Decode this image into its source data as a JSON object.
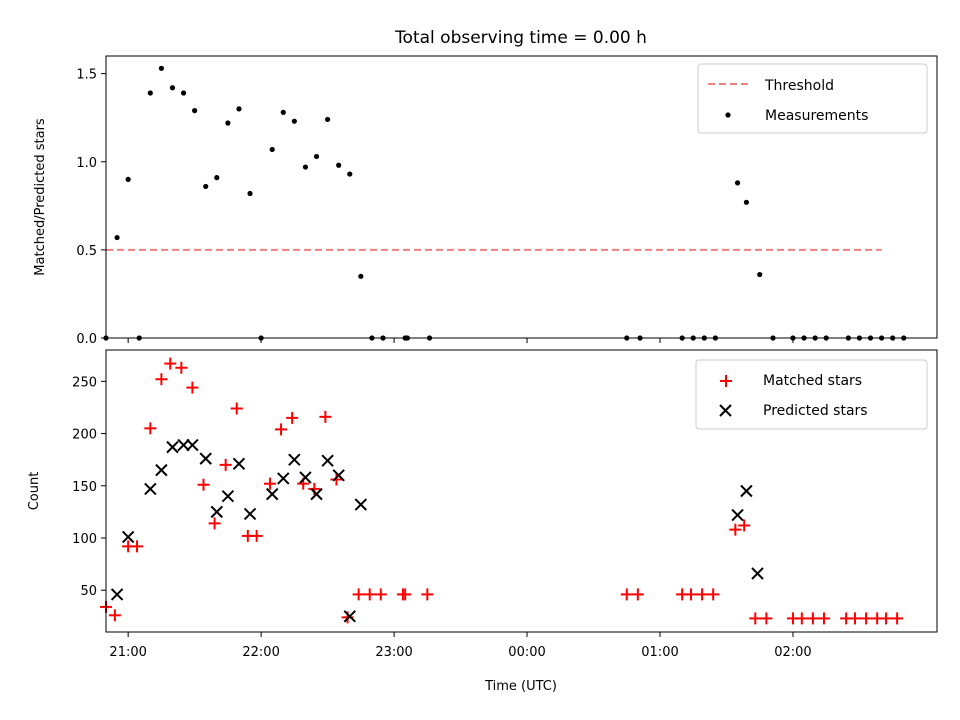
{
  "figure": {
    "title": "Total observing time = 0.00 h",
    "xlabel": "Time (UTC)"
  },
  "chart_data": [
    {
      "type": "scatter",
      "ylabel": "Matched/Predicted stars",
      "xlim": [
        "20:50",
        "03:05"
      ],
      "ylim": [
        0,
        1.6
      ],
      "yticks": [
        "0.0",
        "0.5",
        "1.0",
        "1.5"
      ],
      "legend_position": "top-right",
      "threshold": {
        "name": "Threshold",
        "value": 0.5,
        "x_start": "20:50",
        "x_end": "02:40",
        "color": "#f08080"
      },
      "series": [
        {
          "name": "Measurements",
          "color": "#000000",
          "points": [
            [
              "20:50",
              0.0
            ],
            [
              "20:55",
              0.57
            ],
            [
              "21:00",
              0.9
            ],
            [
              "21:05",
              0.0
            ],
            [
              "21:10",
              1.39
            ],
            [
              "21:15",
              1.53
            ],
            [
              "21:20",
              1.42
            ],
            [
              "21:25",
              1.39
            ],
            [
              "21:30",
              1.29
            ],
            [
              "21:35",
              0.86
            ],
            [
              "21:40",
              0.91
            ],
            [
              "21:45",
              1.22
            ],
            [
              "21:50",
              1.3
            ],
            [
              "21:55",
              0.82
            ],
            [
              "22:00",
              0.0
            ],
            [
              "22:05",
              1.07
            ],
            [
              "22:10",
              1.28
            ],
            [
              "22:15",
              1.23
            ],
            [
              "22:20",
              0.97
            ],
            [
              "22:25",
              1.03
            ],
            [
              "22:30",
              1.24
            ],
            [
              "22:35",
              0.98
            ],
            [
              "22:40",
              0.93
            ],
            [
              "22:45",
              0.35
            ],
            [
              "22:50",
              0.0
            ],
            [
              "22:55",
              0.0
            ],
            [
              "23:05",
              0.0
            ],
            [
              "23:06",
              0.0
            ],
            [
              "23:16",
              0.0
            ],
            [
              "00:45",
              0.0
            ],
            [
              "00:51",
              0.0
            ],
            [
              "01:10",
              0.0
            ],
            [
              "01:15",
              0.0
            ],
            [
              "01:20",
              0.0
            ],
            [
              "01:25",
              0.0
            ],
            [
              "01:35",
              0.88
            ],
            [
              "01:39",
              0.77
            ],
            [
              "01:45",
              0.36
            ],
            [
              "01:51",
              0.0
            ],
            [
              "02:00",
              0.0
            ],
            [
              "02:05",
              0.0
            ],
            [
              "02:10",
              0.0
            ],
            [
              "02:15",
              0.0
            ],
            [
              "02:25",
              0.0
            ],
            [
              "02:30",
              0.0
            ],
            [
              "02:35",
              0.0
            ],
            [
              "02:40",
              0.0
            ],
            [
              "02:45",
              0.0
            ],
            [
              "02:50",
              0.0
            ]
          ]
        }
      ]
    },
    {
      "type": "scatter",
      "ylabel": "Count",
      "xlim": [
        "20:50",
        "03:05"
      ],
      "ylim": [
        10,
        280
      ],
      "yticks": [
        "50",
        "100",
        "150",
        "200",
        "250"
      ],
      "xticks": [
        "21:00",
        "22:00",
        "23:00",
        "00:00",
        "01:00",
        "02:00"
      ],
      "legend_position": "top-right",
      "series": [
        {
          "name": "Matched stars",
          "marker": "plus",
          "color": "#ff0000",
          "points": [
            [
              "20:50",
              34
            ],
            [
              "20:54",
              26
            ],
            [
              "21:00",
              92
            ],
            [
              "21:04",
              92
            ],
            [
              "21:10",
              205
            ],
            [
              "21:15",
              252
            ],
            [
              "21:19",
              267
            ],
            [
              "21:24",
              263
            ],
            [
              "21:29",
              244
            ],
            [
              "21:34",
              151
            ],
            [
              "21:39",
              114
            ],
            [
              "21:44",
              170
            ],
            [
              "21:49",
              224
            ],
            [
              "21:54",
              102
            ],
            [
              "21:58",
              102
            ],
            [
              "22:04",
              152
            ],
            [
              "22:09",
              204
            ],
            [
              "22:14",
              215
            ],
            [
              "22:19",
              152
            ],
            [
              "22:24",
              147
            ],
            [
              "22:29",
              216
            ],
            [
              "22:34",
              156
            ],
            [
              "22:39",
              24
            ],
            [
              "22:44",
              46
            ],
            [
              "22:49",
              46
            ],
            [
              "22:54",
              46
            ],
            [
              "23:04",
              46
            ],
            [
              "23:05",
              46
            ],
            [
              "23:15",
              46
            ],
            [
              "00:45",
              46
            ],
            [
              "00:50",
              46
            ],
            [
              "01:10",
              46
            ],
            [
              "01:14",
              46
            ],
            [
              "01:19",
              46
            ],
            [
              "01:24",
              46
            ],
            [
              "01:34",
              108
            ],
            [
              "01:38",
              112
            ],
            [
              "01:43",
              23
            ],
            [
              "01:48",
              23
            ],
            [
              "02:00",
              23
            ],
            [
              "02:04",
              23
            ],
            [
              "02:09",
              23
            ],
            [
              "02:14",
              23
            ],
            [
              "02:24",
              23
            ],
            [
              "02:28",
              23
            ],
            [
              "02:33",
              23
            ],
            [
              "02:38",
              23
            ],
            [
              "02:42",
              23
            ],
            [
              "02:47",
              23
            ]
          ]
        },
        {
          "name": "Predicted stars",
          "marker": "x",
          "color": "#000000",
          "points": [
            [
              "20:55",
              46
            ],
            [
              "21:00",
              101
            ],
            [
              "21:10",
              147
            ],
            [
              "21:15",
              165
            ],
            [
              "21:20",
              187
            ],
            [
              "21:25",
              189
            ],
            [
              "21:29",
              189
            ],
            [
              "21:35",
              176
            ],
            [
              "21:40",
              125
            ],
            [
              "21:45",
              140
            ],
            [
              "21:50",
              171
            ],
            [
              "21:55",
              123
            ],
            [
              "22:05",
              142
            ],
            [
              "22:10",
              157
            ],
            [
              "22:15",
              175
            ],
            [
              "22:20",
              158
            ],
            [
              "22:25",
              142
            ],
            [
              "22:30",
              174
            ],
            [
              "22:35",
              160
            ],
            [
              "22:40",
              25
            ],
            [
              "22:45",
              132
            ],
            [
              "01:35",
              122
            ],
            [
              "01:39",
              145
            ],
            [
              "01:44",
              66
            ]
          ]
        }
      ]
    }
  ]
}
